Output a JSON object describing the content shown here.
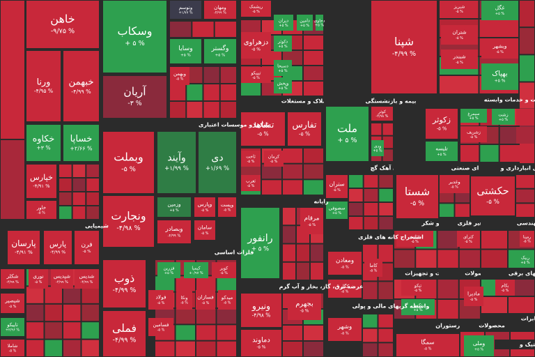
{
  "tiles": [
    {
      "name": "خاهن",
      "change": "-۹/۷۵ %"
    },
    {
      "name": "ورنا",
      "change": "-۴/۹۵ %"
    },
    {
      "name": "خبهمن",
      "change": "-۴/۹۹ %"
    },
    {
      "name": "خکاوه",
      "change": "+۳ %"
    },
    {
      "name": "خساپا",
      "change": "+۲/۶۶ %"
    },
    {
      "name": "خپارس",
      "change": "-۴/۹۱ %"
    },
    {
      "name": "خاور",
      "change": "-۵ %"
    },
    {
      "name": "پارسان",
      "change": "-۴/۹۱ %"
    },
    {
      "name": "پارس",
      "change": "-۴/۹۹ %"
    },
    {
      "name": "فرن",
      "change": "-۵ %"
    },
    {
      "name": "شکلر",
      "change": "-۴/۹۹ %"
    },
    {
      "name": "نوری",
      "change": "-۵ %"
    },
    {
      "name": "شپدیس",
      "change": "-۴/۹۹ %"
    },
    {
      "name": "شدیس",
      "change": "-۴/۹۹ %"
    },
    {
      "name": "شیصیر",
      "change": "-۵ %"
    },
    {
      "name": "تاپیکو",
      "change": "+۲/۹۶ %"
    },
    {
      "name": "شاملا",
      "change": "-۵ %"
    },
    {
      "name": "وسکاب",
      "change": "+ ۵ %"
    },
    {
      "name": "ونوسم",
      "change": "+۱/۷۷ %"
    },
    {
      "name": "ومهان",
      "change": "-۴/۹۹ %"
    },
    {
      "name": "وسایا",
      "change": "+۵ %"
    },
    {
      "name": "وگستر",
      "change": "+۵ %"
    },
    {
      "name": "وبهمن",
      "change": "-۵ %"
    },
    {
      "name": "آریان",
      "change": "-۳ %"
    },
    {
      "name": "وبملت",
      "change": "-۵ %"
    },
    {
      "name": "وآیند",
      "change": "+۱/۹۹ %"
    },
    {
      "name": "دی",
      "change": "+۱/۶۹ %"
    },
    {
      "name": "ونجارت",
      "change": "-۴/۹۸ %"
    },
    {
      "name": "وزمین",
      "change": "+۵ %"
    },
    {
      "name": "وپارس",
      "change": "-۵ %"
    },
    {
      "name": "وپست",
      "change": "-۵ %"
    },
    {
      "name": "وبصادر",
      "change": "-۴/۹۹ %"
    },
    {
      "name": "سامان",
      "change": "-۵ %"
    },
    {
      "name": "ذوب",
      "change": "-۴/۹۹ %"
    },
    {
      "name": "فزرین",
      "change": "+۵ %"
    },
    {
      "name": "کیمیا",
      "change": "+۰/۹۷ %"
    },
    {
      "name": "کویر",
      "change": "-۵ %"
    },
    {
      "name": "فولاد",
      "change": "-۵ %"
    },
    {
      "name": "ونکا",
      "change": "-۵ %"
    },
    {
      "name": "فسازان",
      "change": "-۵ %"
    },
    {
      "name": "میدکو",
      "change": "-۵ %"
    },
    {
      "name": "فملی",
      "change": "-۴/۹۹ %"
    },
    {
      "name": "فسامین",
      "change": "-۵ %"
    },
    {
      "name": "ریشمک",
      "change": "-۵ %"
    },
    {
      "name": "دیران",
      "change": "+۵ %"
    },
    {
      "name": "دامین",
      "change": "+۵ %"
    },
    {
      "name": "دحاوی",
      "change": "+۵ %"
    },
    {
      "name": "دزهراوی",
      "change": "-۵ %"
    },
    {
      "name": "دکوثر",
      "change": "+۵ %"
    },
    {
      "name": "دسبحا",
      "change": "+۵ %"
    },
    {
      "name": "تیپیکو",
      "change": "-۵ %"
    },
    {
      "name": "وپخش",
      "change": "+۵ %"
    },
    {
      "name": "تشاهد",
      "change": "-۵ %"
    },
    {
      "name": "تفارس",
      "change": "-۵ %"
    },
    {
      "name": "ثاخت",
      "change": "-۵ %"
    },
    {
      "name": "کرمان",
      "change": "-۵ %"
    },
    {
      "name": "ثغرب",
      "change": "-۵ %"
    },
    {
      "name": "رانفور",
      "change": "+ ۵ %"
    },
    {
      "name": "مرقام",
      "change": "-۵ %"
    },
    {
      "name": "ونیرو",
      "change": "-۴/۹۸ %"
    },
    {
      "name": "بجهرم",
      "change": "-۵ %"
    },
    {
      "name": "دماوند",
      "change": "-۵ %"
    },
    {
      "name": "ملت",
      "change": "+ ۵ %"
    },
    {
      "name": "کوثر",
      "change": "-۴/۹۸ %"
    },
    {
      "name": "ودی",
      "change": "+۵ %"
    },
    {
      "name": "ستران",
      "change": "-۵ %"
    },
    {
      "name": "سصوفی",
      "change": "+۵ %"
    },
    {
      "name": "ومعادن",
      "change": "-۵ %"
    },
    {
      "name": "کاما",
      "change": "-۵ %"
    },
    {
      "name": "کگل",
      "change": "-۵ %"
    },
    {
      "name": "وشهر",
      "change": "-۵ %"
    },
    {
      "name": "شپنا",
      "change": "-۴/۹۹ %"
    },
    {
      "name": "شبریز",
      "change": "-۵ %"
    },
    {
      "name": "شتران",
      "change": "-۵ %"
    },
    {
      "name": "شبندر",
      "change": "-۵ %"
    },
    {
      "name": "غگل",
      "change": "+۵ %"
    },
    {
      "name": "وبشهر",
      "change": "-۵ %"
    },
    {
      "name": "بهپاک",
      "change": "+۵ %"
    },
    {
      "name": "زکوثر",
      "change": "-۵ %"
    },
    {
      "name": "سیمرغ",
      "change": "+۵ %"
    },
    {
      "name": "زشریف",
      "change": "-۵ %"
    },
    {
      "name": "تلیسه",
      "change": "+۵ %"
    },
    {
      "name": "زشت",
      "change": "+۵ %"
    },
    {
      "name": "شستا",
      "change": "-۵ %"
    },
    {
      "name": "وغدیر",
      "change": "-۵ %"
    },
    {
      "name": "حکشتی",
      "change": "-۵ %"
    },
    {
      "name": "قثابت",
      "change": "-۵ %"
    },
    {
      "name": "کترای",
      "change": "-۵ %"
    },
    {
      "name": "رمپنا",
      "change": "-۵ %"
    },
    {
      "name": "ربیک",
      "change": "+۵ %"
    },
    {
      "name": "تیکو",
      "change": "-۵ %"
    },
    {
      "name": "تکمبا",
      "change": "+۵ %"
    },
    {
      "name": "مادیرا",
      "change": "-۵ %"
    },
    {
      "name": "بکام",
      "change": "-۵ %"
    },
    {
      "name": "سمگا",
      "change": "-۵ %"
    },
    {
      "name": "وملی",
      "change": "+۵ %"
    }
  ],
  "sectors": [
    "شیمیایی",
    "بانکها و موسسات اعتباری",
    "فلزات اساسی",
    "انبوه سازی املاک و مستغلات",
    "رایانه",
    "عرضه برق، گاز، بخار و آب گرم",
    "بیمه و بازنشستگی",
    "سیمان آهک گچ",
    "استخراج کانه های فلزی",
    "واسطه گریهای مالی و پولی",
    "زراعت و خدمات وابسته",
    "چندرشته ای صنعتی",
    "حمل و نقل انبارداری و",
    "قند و شکر",
    "کانی غیر فلزی",
    "ی مهندسی",
    "ماشین آلات و تجهیزات",
    "محصولات",
    "دستگاههای برقی",
    "هتل و رستوران",
    "محصولات",
    "مخابرات",
    "لاستیک و"
  ]
}
